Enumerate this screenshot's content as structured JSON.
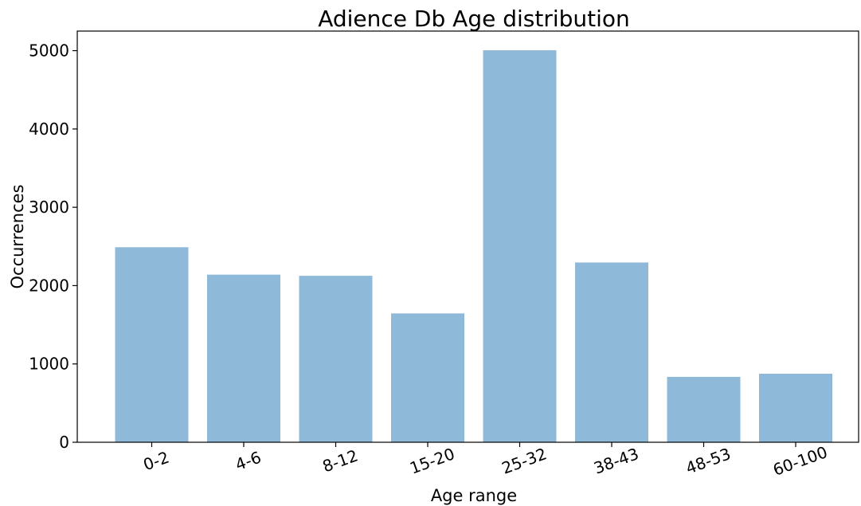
{
  "chart_data": {
    "type": "bar",
    "title": "Adience Db Age distribution",
    "xlabel": "Age range",
    "ylabel": "Occurrences",
    "categories": [
      "0-2",
      "4-6",
      "8-12",
      "15-20",
      "25-32",
      "38-43",
      "48-53",
      "60-100"
    ],
    "values": [
      2490,
      2140,
      2125,
      1645,
      5005,
      2295,
      835,
      875
    ],
    "ylim": [
      0,
      5250
    ],
    "yticks": [
      0,
      1000,
      2000,
      3000,
      4000,
      5000
    ],
    "ytick_labels": [
      "0",
      "1000",
      "2000",
      "3000",
      "4000",
      "5000"
    ],
    "grid": false,
    "legend": "none",
    "bar_color": "#8fb9d9"
  }
}
